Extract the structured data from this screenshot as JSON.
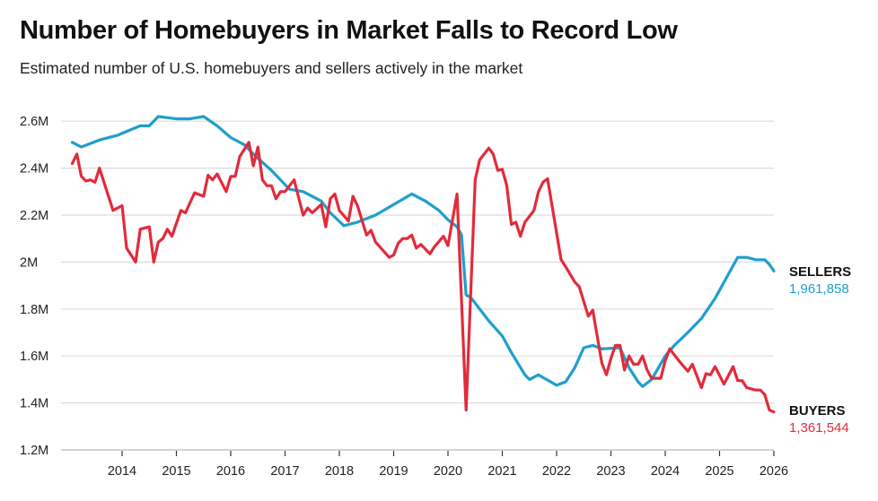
{
  "chart_data": {
    "type": "line",
    "title": "Number of Homebuyers in Market Falls to Record Low",
    "subtitle": "Estimated number of U.S. homebuyers and sellers actively in the market",
    "xlabel": "",
    "ylabel": "",
    "ylim": [
      1200000,
      2600000
    ],
    "y_ticks": [
      {
        "value": 1200000,
        "label": "1.2M"
      },
      {
        "value": 1400000,
        "label": "1.4M"
      },
      {
        "value": 1600000,
        "label": "1.6M"
      },
      {
        "value": 1800000,
        "label": "1.8M"
      },
      {
        "value": 2000000,
        "label": "2M"
      },
      {
        "value": 2200000,
        "label": "2.2M"
      },
      {
        "value": 2400000,
        "label": "2.4M"
      },
      {
        "value": 2600000,
        "label": "2.6M"
      }
    ],
    "x_ticks": [
      "2014",
      "2015",
      "2016",
      "2017",
      "2018",
      "2019",
      "2020",
      "2021",
      "2022",
      "2023",
      "2024",
      "2025",
      "2026"
    ],
    "grid": "horizontal",
    "legend": "end-of-line labels, right",
    "series": [
      {
        "name": "SELLERS",
        "end_value_label": "1,961,858",
        "color": "#1f9fcc",
        "points": [
          [
            "2013-02",
            2.51
          ],
          [
            "2013-04",
            2.49
          ],
          [
            "2013-08",
            2.52
          ],
          [
            "2013-12",
            2.54
          ],
          [
            "2014-05",
            2.58
          ],
          [
            "2014-07",
            2.58
          ],
          [
            "2014-09",
            2.62
          ],
          [
            "2015-01",
            2.61
          ],
          [
            "2015-04",
            2.61
          ],
          [
            "2015-07",
            2.62
          ],
          [
            "2015-10",
            2.58
          ],
          [
            "2016-01",
            2.53
          ],
          [
            "2016-04",
            2.5
          ],
          [
            "2016-06",
            2.46
          ],
          [
            "2016-10",
            2.39
          ],
          [
            "2017-02",
            2.31
          ],
          [
            "2017-05",
            2.3
          ],
          [
            "2017-09",
            2.26
          ],
          [
            "2017-11",
            2.21
          ],
          [
            "2018-02",
            2.155
          ],
          [
            "2018-05",
            2.17
          ],
          [
            "2018-09",
            2.2
          ],
          [
            "2019-01",
            2.245
          ],
          [
            "2019-05",
            2.29
          ],
          [
            "2019-08",
            2.26
          ],
          [
            "2019-11",
            2.22
          ],
          [
            "2020-01",
            2.18
          ],
          [
            "2020-03",
            2.15
          ],
          [
            "2020-04",
            2.115
          ],
          [
            "2020-05",
            1.86
          ],
          [
            "2020-06",
            1.85
          ],
          [
            "2020-10",
            1.75
          ],
          [
            "2021-01",
            1.685
          ],
          [
            "2021-03",
            1.615
          ],
          [
            "2021-06",
            1.52
          ],
          [
            "2021-07",
            1.5
          ],
          [
            "2021-09",
            1.52
          ],
          [
            "2022-01",
            1.475
          ],
          [
            "2022-03",
            1.49
          ],
          [
            "2022-05",
            1.55
          ],
          [
            "2022-07",
            1.635
          ],
          [
            "2022-09",
            1.645
          ],
          [
            "2022-11",
            1.63
          ],
          [
            "2023-03",
            1.635
          ],
          [
            "2023-05",
            1.55
          ],
          [
            "2023-07",
            1.49
          ],
          [
            "2023-08",
            1.47
          ],
          [
            "2023-10",
            1.5
          ],
          [
            "2024-01",
            1.6
          ],
          [
            "2024-03",
            1.645
          ],
          [
            "2024-06",
            1.7
          ],
          [
            "2024-09",
            1.76
          ],
          [
            "2024-12",
            1.845
          ],
          [
            "2025-03",
            1.95
          ],
          [
            "2025-05",
            2.02
          ],
          [
            "2025-07",
            2.02
          ],
          [
            "2025-09",
            2.01
          ],
          [
            "2025-11",
            2.01
          ],
          [
            "2025-12",
            1.99
          ],
          [
            "2026-01",
            1.962
          ]
        ]
      },
      {
        "name": "BUYERS",
        "end_value_label": "1,361,544",
        "color": "#e12b3c",
        "points": [
          [
            "2013-02",
            2.42
          ],
          [
            "2013-03",
            2.46
          ],
          [
            "2013-04",
            2.365
          ],
          [
            "2013-05",
            2.345
          ],
          [
            "2013-06",
            2.35
          ],
          [
            "2013-07",
            2.34
          ],
          [
            "2013-08",
            2.4
          ],
          [
            "2013-11",
            2.22
          ],
          [
            "2014-01",
            2.24
          ],
          [
            "2014-02",
            2.06
          ],
          [
            "2014-04",
            2.0
          ],
          [
            "2014-05",
            2.14
          ],
          [
            "2014-07",
            2.15
          ],
          [
            "2014-08",
            2.0
          ],
          [
            "2014-09",
            2.085
          ],
          [
            "2014-10",
            2.1
          ],
          [
            "2014-11",
            2.14
          ],
          [
            "2014-12",
            2.11
          ],
          [
            "2015-02",
            2.22
          ],
          [
            "2015-03",
            2.21
          ],
          [
            "2015-05",
            2.295
          ],
          [
            "2015-07",
            2.28
          ],
          [
            "2015-08",
            2.37
          ],
          [
            "2015-09",
            2.35
          ],
          [
            "2015-10",
            2.375
          ],
          [
            "2015-12",
            2.3
          ],
          [
            "2016-01",
            2.365
          ],
          [
            "2016-02",
            2.365
          ],
          [
            "2016-03",
            2.45
          ],
          [
            "2016-05",
            2.51
          ],
          [
            "2016-06",
            2.41
          ],
          [
            "2016-07",
            2.49
          ],
          [
            "2016-08",
            2.35
          ],
          [
            "2016-09",
            2.325
          ],
          [
            "2016-10",
            2.325
          ],
          [
            "2016-11",
            2.27
          ],
          [
            "2016-12",
            2.3
          ],
          [
            "2017-01",
            2.3
          ],
          [
            "2017-03",
            2.35
          ],
          [
            "2017-05",
            2.2
          ],
          [
            "2017-06",
            2.23
          ],
          [
            "2017-07",
            2.21
          ],
          [
            "2017-09",
            2.245
          ],
          [
            "2017-10",
            2.15
          ],
          [
            "2017-11",
            2.27
          ],
          [
            "2017-12",
            2.29
          ],
          [
            "2018-01",
            2.22
          ],
          [
            "2018-03",
            2.175
          ],
          [
            "2018-04",
            2.28
          ],
          [
            "2018-05",
            2.24
          ],
          [
            "2018-07",
            2.115
          ],
          [
            "2018-08",
            2.135
          ],
          [
            "2018-09",
            2.085
          ],
          [
            "2018-12",
            2.02
          ],
          [
            "2019-01",
            2.03
          ],
          [
            "2019-02",
            2.08
          ],
          [
            "2019-03",
            2.1
          ],
          [
            "2019-04",
            2.1
          ],
          [
            "2019-05",
            2.115
          ],
          [
            "2019-06",
            2.06
          ],
          [
            "2019-07",
            2.075
          ],
          [
            "2019-09",
            2.035
          ],
          [
            "2019-10",
            2.065
          ],
          [
            "2019-12",
            2.11
          ],
          [
            "2020-01",
            2.07
          ],
          [
            "2020-03",
            2.29
          ],
          [
            "2020-05",
            1.37
          ],
          [
            "2020-07",
            2.35
          ],
          [
            "2020-08",
            2.435
          ],
          [
            "2020-10",
            2.485
          ],
          [
            "2020-11",
            2.46
          ],
          [
            "2020-12",
            2.39
          ],
          [
            "2021-01",
            2.395
          ],
          [
            "2021-02",
            2.325
          ],
          [
            "2021-03",
            2.16
          ],
          [
            "2021-04",
            2.17
          ],
          [
            "2021-05",
            2.11
          ],
          [
            "2021-06",
            2.17
          ],
          [
            "2021-08",
            2.22
          ],
          [
            "2021-09",
            2.3
          ],
          [
            "2021-10",
            2.34
          ],
          [
            "2021-11",
            2.355
          ],
          [
            "2022-02",
            2.01
          ],
          [
            "2022-03",
            1.98
          ],
          [
            "2022-05",
            1.915
          ],
          [
            "2022-06",
            1.895
          ],
          [
            "2022-08",
            1.77
          ],
          [
            "2022-09",
            1.795
          ],
          [
            "2022-11",
            1.57
          ],
          [
            "2022-12",
            1.52
          ],
          [
            "2023-01",
            1.59
          ],
          [
            "2023-02",
            1.645
          ],
          [
            "2023-03",
            1.645
          ],
          [
            "2023-04",
            1.54
          ],
          [
            "2023-05",
            1.6
          ],
          [
            "2023-06",
            1.565
          ],
          [
            "2023-07",
            1.565
          ],
          [
            "2023-08",
            1.6
          ],
          [
            "2023-09",
            1.54
          ],
          [
            "2023-10",
            1.505
          ],
          [
            "2023-12",
            1.505
          ],
          [
            "2024-01",
            1.58
          ],
          [
            "2024-02",
            1.63
          ],
          [
            "2024-04",
            1.58
          ],
          [
            "2024-06",
            1.535
          ],
          [
            "2024-07",
            1.565
          ],
          [
            "2024-09",
            1.465
          ],
          [
            "2024-10",
            1.525
          ],
          [
            "2024-11",
            1.52
          ],
          [
            "2024-12",
            1.555
          ],
          [
            "2025-02",
            1.48
          ],
          [
            "2025-04",
            1.555
          ],
          [
            "2025-05",
            1.495
          ],
          [
            "2025-06",
            1.495
          ],
          [
            "2025-07",
            1.465
          ],
          [
            "2025-09",
            1.455
          ],
          [
            "2025-10",
            1.455
          ],
          [
            "2025-11",
            1.435
          ],
          [
            "2025-12",
            1.37
          ],
          [
            "2026-01",
            1.362
          ]
        ]
      }
    ]
  }
}
